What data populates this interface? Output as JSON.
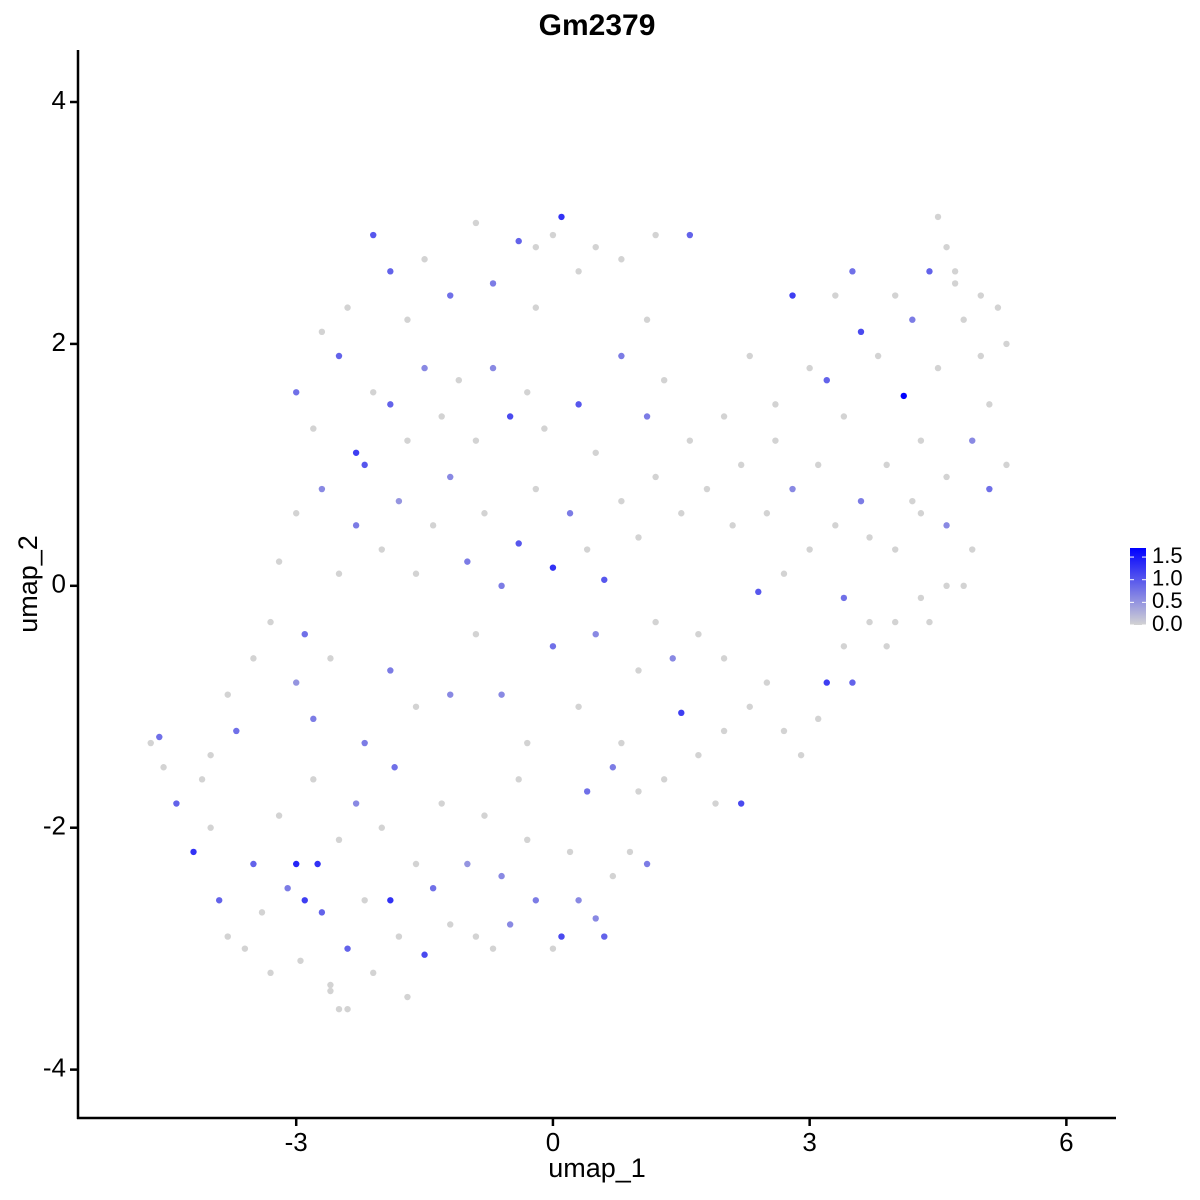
{
  "chart_data": {
    "type": "scatter",
    "title": "Gm2379",
    "x_label": "umap_1",
    "y_label": "umap_2",
    "xlim": [
      -5.55,
      6.58
    ],
    "ylim": [
      -4.4,
      4.43
    ],
    "xticks": [
      -3,
      0,
      3,
      6
    ],
    "yticks": [
      -4,
      -2,
      0,
      2,
      4
    ],
    "low_color": "#d3d3d3",
    "high_color": "#0000ff",
    "colorbar": {
      "lim": [
        0,
        1.7
      ],
      "ticks": [
        {
          "value": 0,
          "label": "0.0"
        },
        {
          "value": 0.5,
          "label": "0.5"
        },
        {
          "value": 1,
          "label": "1.0"
        },
        {
          "value": 1.5,
          "label": "1.5"
        }
      ]
    },
    "x": [
      -4.7,
      -4.6,
      -4.55,
      -4.4,
      -4.2,
      -4.1,
      -4,
      -3.9,
      -3.8,
      -3.7,
      -3.6,
      -3.5,
      -3.4,
      -3.3,
      -3.2,
      -3.1,
      -3,
      -2.95,
      -2.9,
      -2.8,
      -2.75,
      -2.7,
      -2.6,
      -2.5,
      -2.4,
      -2.3,
      -2.2,
      -2.1,
      -2,
      -1.9,
      -1.85,
      -1.8,
      -1.7,
      -2.5,
      -2.4,
      -2.6,
      -1.6,
      -1.5,
      -1.4,
      -1.3,
      -1.2,
      -1,
      -0.9,
      -0.8,
      -0.7,
      -0.6,
      -0.5,
      -0.4,
      -0.3,
      -0.2,
      0,
      0.1,
      0.2,
      0.3,
      0.4,
      0.5,
      0.6,
      0.7,
      0.9,
      1,
      1.1,
      0.8,
      1.3,
      1.5,
      1.7,
      1.9,
      2.2,
      2,
      2.3,
      2.5,
      2.7,
      2.9,
      3.1,
      3.2,
      3.4,
      3.5,
      3.7,
      4,
      4.3,
      4.6,
      -3.5,
      -3.3,
      -3,
      -2.8,
      -2.6,
      -3.8,
      -4,
      -2.2,
      -1.9,
      -1.6,
      -1.2,
      -0.9,
      -0.6,
      -0.3,
      0,
      0.3,
      0.5,
      0.7,
      1,
      1.2,
      1.4,
      1.7,
      2,
      2.4,
      -3.2,
      -3,
      -2.9,
      -2.7,
      -2.5,
      -2.3,
      -2.2,
      -2,
      -1.8,
      -1.6,
      -1.4,
      -1.2,
      -1,
      -0.8,
      -0.6,
      -0.4,
      -0.2,
      0,
      0.2,
      0.4,
      0.6,
      0.8,
      1,
      1.2,
      1.5,
      1.8,
      2.1,
      -3,
      -2.8,
      -2.5,
      -2.3,
      -2.1,
      -1.9,
      -1.7,
      -1.5,
      -1.3,
      -1.1,
      -0.9,
      -0.7,
      -0.5,
      -0.3,
      -0.1,
      0.3,
      0.5,
      0.8,
      1.1,
      1.3,
      1.6,
      -2.7,
      -2.4,
      -2.1,
      -1.9,
      -1.7,
      -1.5,
      -1.2,
      -0.9,
      -0.7,
      -0.4,
      -0.2,
      0,
      0.1,
      0.3,
      0.5,
      0.8,
      1.2,
      1.6,
      1.1,
      -0.2,
      2,
      2.3,
      2.6,
      2.8,
      3,
      3.2,
      3.3,
      3.5,
      3.6,
      3.8,
      4,
      4.1,
      4.3,
      4.4,
      4.5,
      4.6,
      4.7,
      4.8,
      5,
      5.2,
      5.3,
      5.1,
      4.9,
      4.6,
      4.2,
      3.9,
      3.6,
      3.3,
      3.1,
      2.8,
      2.5,
      2.7,
      3,
      3.4,
      3.7,
      4,
      4.3,
      4.6,
      4.9,
      5.1,
      5.3,
      4.8,
      4.4,
      3.9,
      2.2,
      2.6,
      3.4,
      4.5,
      4.2,
      4.7,
      5
    ],
    "values": [
      -1.3,
      -1.25,
      -1.5,
      -1.8,
      -2.2,
      -1.6,
      -2,
      -2.6,
      -2.9,
      -1.2,
      -3,
      -2.3,
      -2.7,
      -3.2,
      -1.9,
      -2.5,
      -2.3,
      -3.1,
      -2.6,
      -1.6,
      -2.3,
      -2.7,
      -3.3,
      -2.1,
      -3,
      -1.8,
      -2.6,
      -3.2,
      -2,
      -2.6,
      -1.5,
      -2.9,
      -3.4,
      -3.5,
      -3.5,
      -3.35,
      -2.3,
      -3.05,
      -2.5,
      -1.8,
      -2.8,
      -2.3,
      -2.9,
      -1.9,
      -3,
      -2.4,
      -2.8,
      -1.6,
      -2.1,
      -2.6,
      -3,
      -2.9,
      -2.2,
      -2.6,
      -1.7,
      -2.75,
      -2.9,
      -2.4,
      -2.2,
      -1.7,
      -2.3,
      -1.3,
      -1.6,
      -1.05,
      -1.4,
      -1.8,
      -1.8,
      -1.2,
      -1,
      -0.8,
      -1.2,
      -1.4,
      -1.1,
      -0.8,
      -0.5,
      -0.8,
      -0.3,
      -0.3,
      -0.1,
      0,
      -0.6,
      -0.3,
      -0.8,
      -1.1,
      -0.6,
      -0.9,
      -1.4,
      -1.3,
      -0.7,
      -1,
      -0.9,
      -0.4,
      -0.9,
      -1.3,
      -0.5,
      -1,
      -0.4,
      -1.5,
      -0.7,
      -0.3,
      -0.6,
      -0.4,
      -0.6,
      -0.05,
      0.2,
      0.6,
      -0.4,
      0.8,
      0.1,
      0.5,
      1,
      0.3,
      0.7,
      0.1,
      0.5,
      0.9,
      0.2,
      0.6,
      0,
      0.35,
      0.8,
      0.15,
      0.6,
      0.3,
      0.05,
      0.7,
      0.4,
      0.9,
      0.6,
      0.8,
      0.5,
      1.6,
      1.3,
      1.9,
      1.1,
      1.6,
      1.5,
      1.2,
      1.8,
      1.4,
      1.7,
      1.2,
      1.8,
      1.4,
      1.6,
      1.3,
      1.5,
      1.1,
      1.9,
      1.4,
      1.7,
      1.2,
      2.1,
      2.3,
      2.9,
      2.6,
      2.2,
      2.7,
      2.4,
      3,
      2.5,
      2.85,
      2.3,
      2.9,
      3.05,
      2.6,
      2.8,
      2.7,
      2.9,
      2.9,
      2.2,
      2.8,
      1.4,
      1.9,
      1.5,
      2.4,
      1.8,
      1.7,
      2.4,
      2.6,
      2.1,
      1.9,
      2.4,
      1.57,
      1.2,
      2.6,
      3.05,
      2.8,
      2.5,
      2.2,
      1.9,
      2.3,
      2,
      1.5,
      1.2,
      0.9,
      0.7,
      1,
      0.7,
      0.5,
      1,
      0.8,
      0.6,
      0.1,
      0.3,
      -0.1,
      0.4,
      0.3,
      0.6,
      0.5,
      0.3,
      0.8,
      1,
      0,
      -0.3,
      -0.5,
      1,
      1.2,
      1.4,
      1.8,
      2.2,
      2.6,
      2.4
    ],
    "expression": [
      0,
      0.8,
      0,
      0.9,
      1.3,
      0,
      0,
      0.9,
      0,
      0.8,
      0,
      0.9,
      0,
      0,
      0,
      0.7,
      1.4,
      0,
      1.2,
      0,
      1.3,
      0.9,
      0,
      0,
      0.9,
      0.6,
      0,
      0,
      0,
      1.3,
      0.8,
      0,
      0,
      0,
      0,
      0,
      0,
      1.1,
      0.8,
      0,
      0,
      0.5,
      0,
      0,
      0,
      0.6,
      0.6,
      0,
      0,
      0.7,
      0,
      1.1,
      0,
      0.6,
      0.8,
      0.6,
      0.9,
      0,
      0,
      0,
      0.7,
      0,
      0,
      1.2,
      0,
      0,
      1.1,
      0,
      0,
      0,
      0,
      0,
      0,
      1.2,
      0,
      0.9,
      0,
      0,
      0,
      0,
      0,
      0,
      0.5,
      0.7,
      0,
      0,
      0,
      0.7,
      0.7,
      0,
      0.6,
      0,
      0.6,
      0,
      0.8,
      0,
      0.6,
      0.7,
      0,
      0,
      0.6,
      0,
      0,
      1,
      0,
      0,
      0.8,
      0.6,
      0,
      0.7,
      1,
      0,
      0.5,
      0,
      0,
      0.6,
      0.7,
      0,
      0.7,
      1,
      0,
      1.3,
      0.7,
      0,
      1,
      0,
      0,
      0,
      0,
      0,
      0,
      0.8,
      0,
      0.9,
      1.2,
      0,
      0.9,
      0,
      0.6,
      0,
      0,
      0,
      0.6,
      1.1,
      0,
      0,
      1,
      0,
      0.7,
      0.7,
      0,
      0,
      0,
      0,
      1,
      0.9,
      0,
      0,
      0.8,
      0,
      0.7,
      0.9,
      0,
      0,
      1.3,
      0,
      0,
      0,
      0,
      0.9,
      0,
      0,
      0,
      0,
      0,
      1.2,
      0,
      0.9,
      0,
      0.8,
      1.1,
      0,
      0,
      1.7,
      0,
      0.9,
      0,
      0,
      0,
      0,
      0,
      0,
      0,
      0,
      0.6,
      0,
      0,
      0,
      0.7,
      0,
      0,
      0.6,
      0,
      0,
      0,
      0.8,
      0,
      0,
      0,
      0.6,
      0,
      0.8,
      0,
      0,
      0,
      0,
      0,
      0,
      0,
      0,
      0.7,
      0,
      0
    ]
  }
}
